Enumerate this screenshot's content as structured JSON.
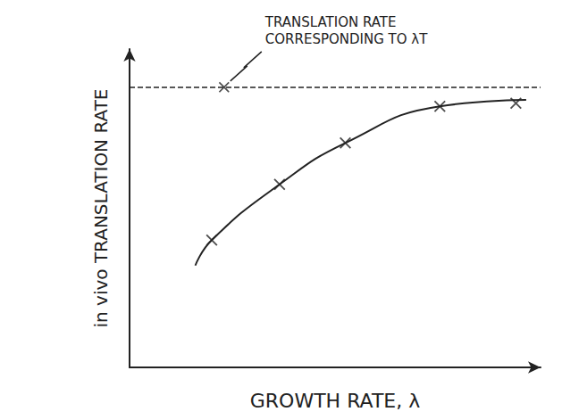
{
  "chart_data": {
    "type": "line",
    "x_label": "GROWTH RATE, λ",
    "y_label": "in vivo TRANSLATION RATE",
    "xlim": [
      0,
      10
    ],
    "ylim": [
      0,
      10
    ],
    "xticks": [],
    "yticks": [],
    "tick_labels": false,
    "grid": false,
    "series": [
      {
        "type": "line",
        "color": "#222222",
        "marker": "none",
        "line_style": "solid",
        "x": [
          1.6,
          2.0,
          3.65,
          5.25,
          7.55,
          9.65
        ],
        "values": [
          3.2,
          4.0,
          5.75,
          7.05,
          8.2,
          8.4
        ]
      },
      {
        "type": "scatter",
        "color": "#222222",
        "marker": "x",
        "x": [
          2.0,
          3.65,
          5.25,
          7.55,
          9.4
        ],
        "values": [
          4.0,
          5.75,
          7.05,
          8.2,
          8.3
        ]
      }
    ],
    "reference_line": {
      "value": 8.8,
      "line_style": "dashed",
      "color": "#222222"
    },
    "annotation": {
      "text": "TRANSLATION RATE CORRESPONDING TO λT",
      "x": 2.3,
      "y": 8.8,
      "marker": "x"
    }
  }
}
